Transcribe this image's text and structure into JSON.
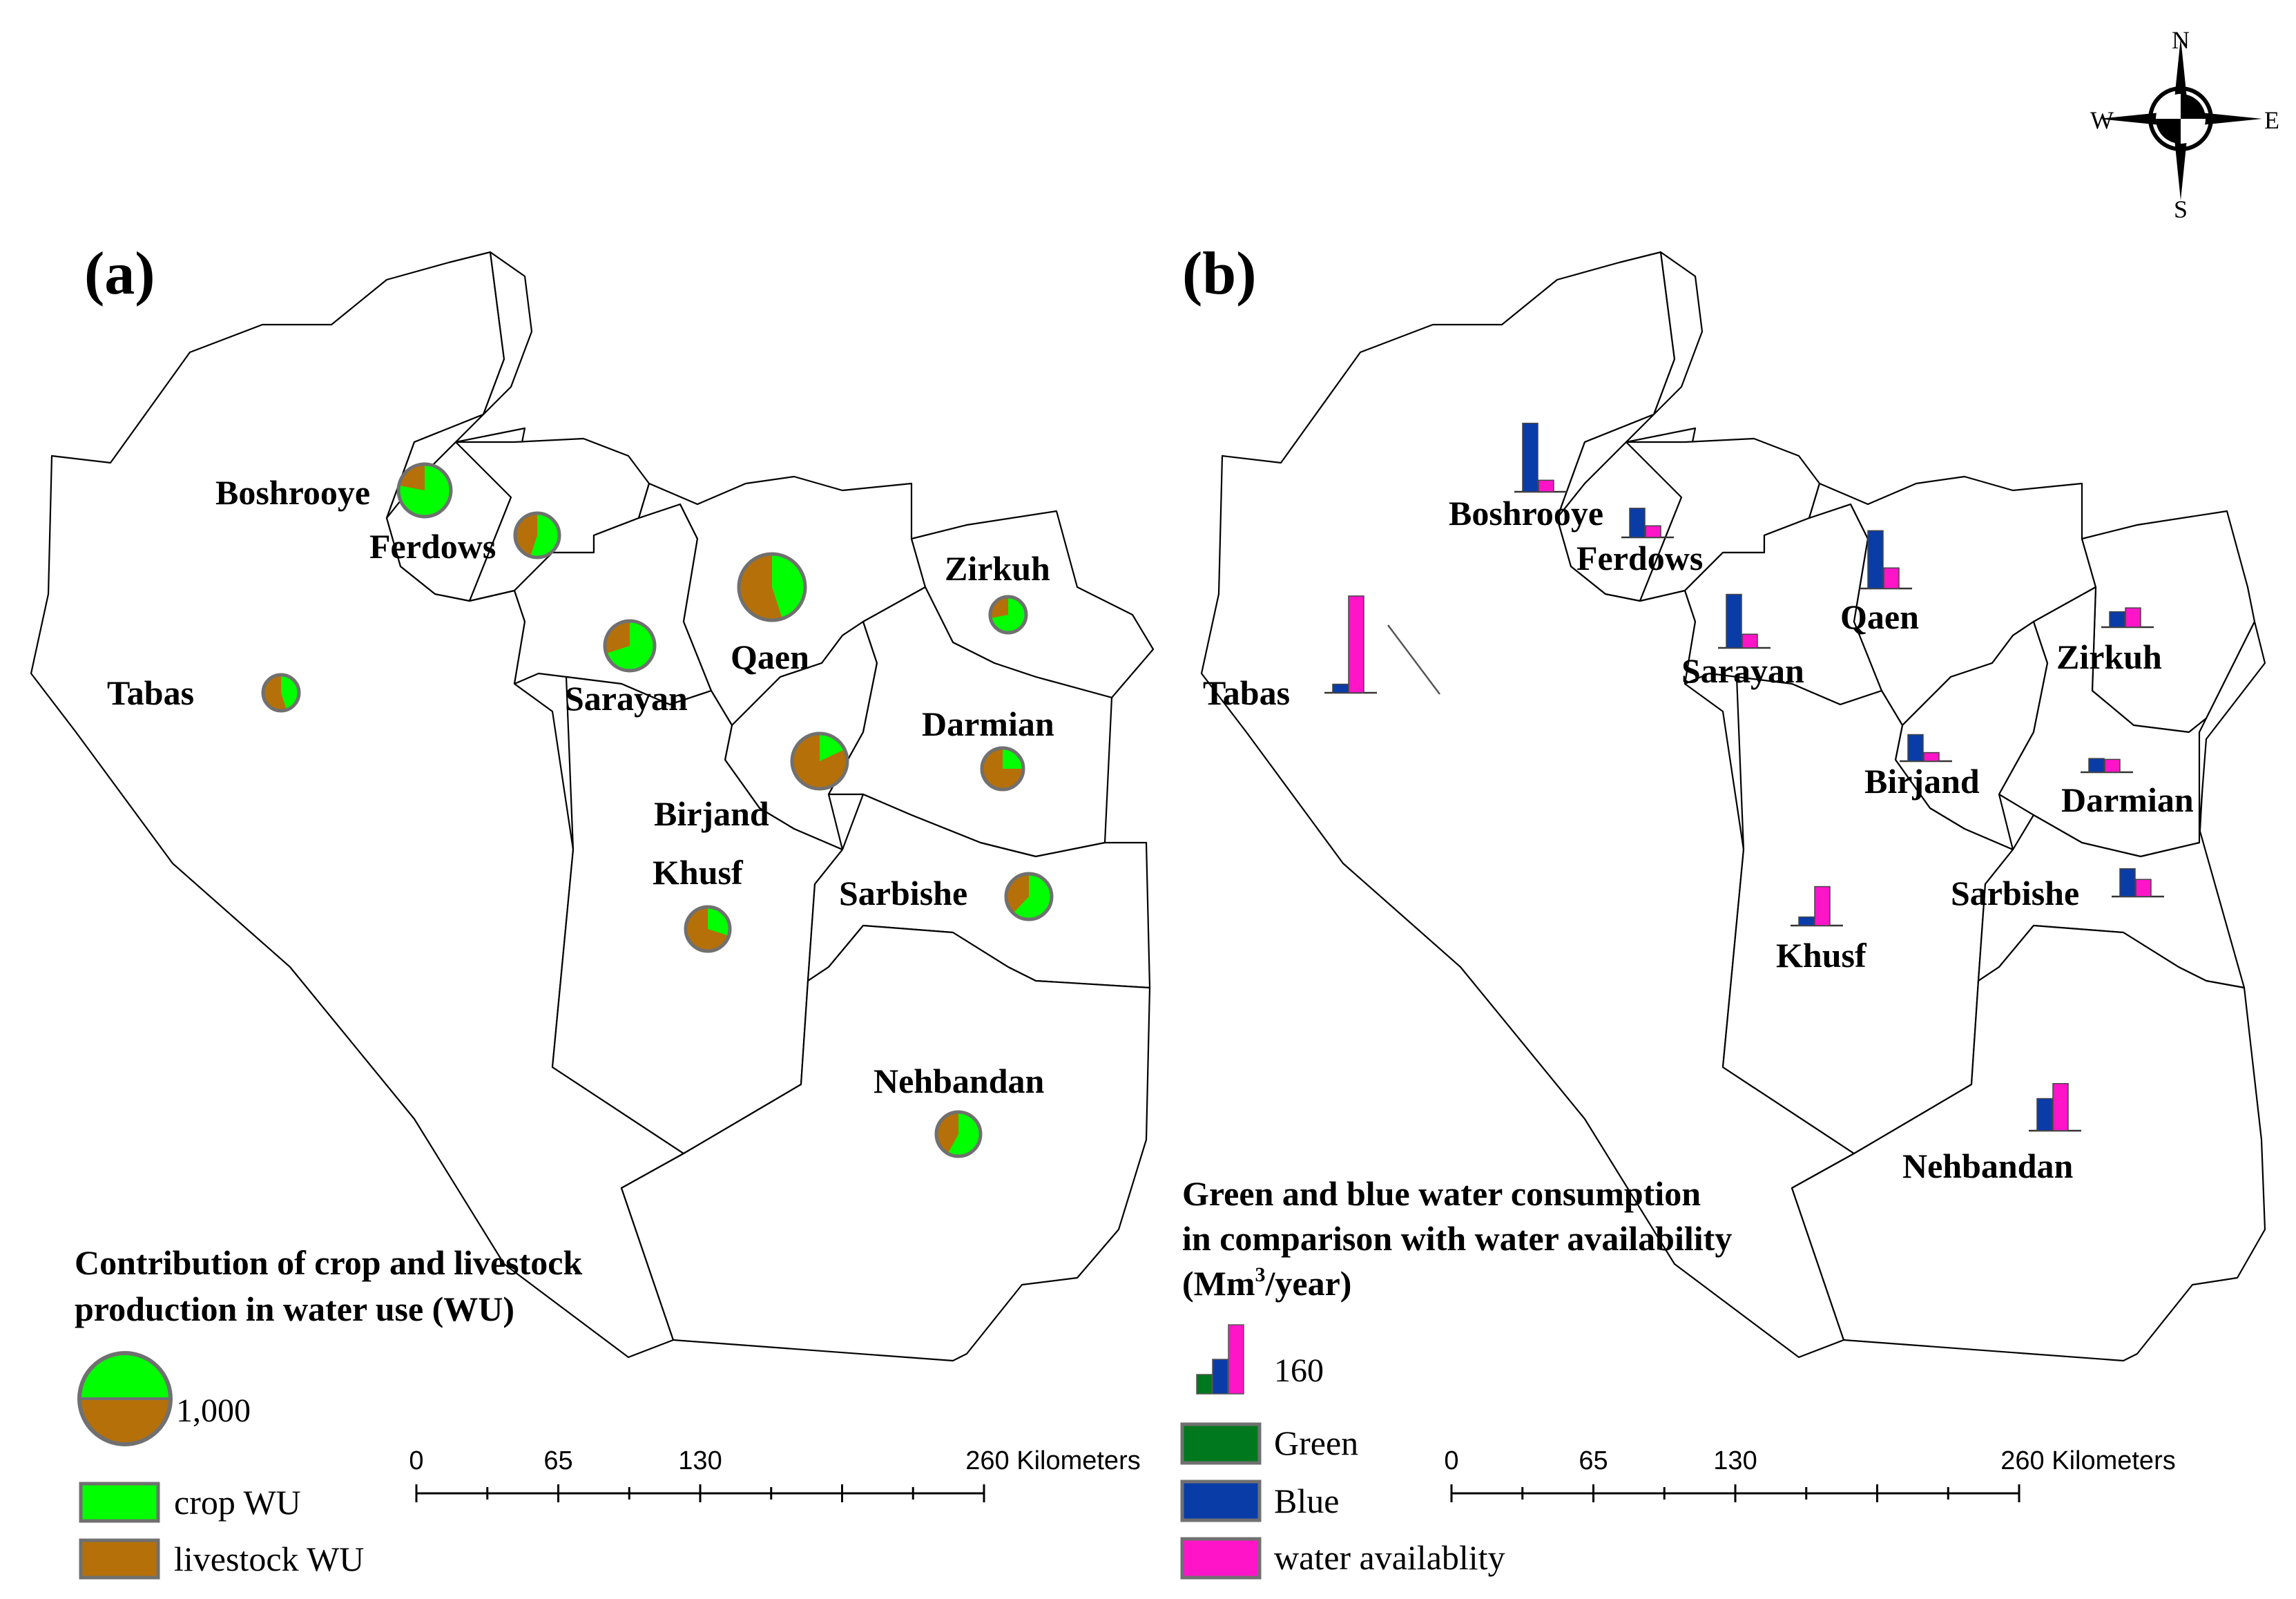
{
  "colors": {
    "crop": "#00ff00",
    "livestock": "#b5700a",
    "green": "#00781e",
    "blue": "#0a3ca8",
    "pink": "#ff14c8",
    "pie_outline": "#707070"
  },
  "compass": {
    "n": "N",
    "s": "S",
    "e": "E",
    "w": "W",
    "icon": "north-arrow-compass-icon"
  },
  "panel_a": {
    "tag": "(a)",
    "regions": [
      {
        "name": "Boshrooye",
        "crop_share": 0.78
      },
      {
        "name": "Ferdows",
        "crop_share": 0.55
      },
      {
        "name": "Tabas",
        "crop_share": 0.45
      },
      {
        "name": "Sarayan",
        "crop_share": 0.7
      },
      {
        "name": "Qaen",
        "crop_share": 0.45
      },
      {
        "name": "Zirkuh",
        "crop_share": 0.72
      },
      {
        "name": "Birjand",
        "crop_share": 0.18
      },
      {
        "name": "Darmian",
        "crop_share": 0.25
      },
      {
        "name": "Khusf",
        "crop_share": 0.3
      },
      {
        "name": "Sarbishe",
        "crop_share": 0.62
      },
      {
        "name": "Nehbandan",
        "crop_share": 0.58
      }
    ],
    "legend": {
      "title_line1": "Contribution of crop and livestock",
      "title_line2": "production in water use (WU)",
      "ref_value": "1,000",
      "crop_label": "crop WU",
      "livestock_label": "livestock WU"
    },
    "scale": {
      "ticks": [
        "0",
        "65",
        "130",
        "260 Kilometers"
      ]
    }
  },
  "panel_b": {
    "tag": "(b)",
    "regions": [
      {
        "name": "Boshrooye",
        "blue": 160,
        "availability": 27
      },
      {
        "name": "Ferdows",
        "blue": 68,
        "availability": 27
      },
      {
        "name": "Tabas",
        "blue": 20,
        "availability": 226
      },
      {
        "name": "Sarayan",
        "blue": 125,
        "availability": 32
      },
      {
        "name": "Qaen",
        "blue": 135,
        "availability": 48
      },
      {
        "name": "Zirkuh",
        "blue": 36,
        "availability": 45
      },
      {
        "name": "Birjand",
        "blue": 62,
        "availability": 20
      },
      {
        "name": "Darmian",
        "blue": 32,
        "availability": 30
      },
      {
        "name": "Khusf",
        "blue": 20,
        "availability": 91
      },
      {
        "name": "Sarbishe",
        "blue": 65,
        "availability": 40
      },
      {
        "name": "Nehbandan",
        "blue": 75,
        "availability": 110
      }
    ],
    "legend": {
      "title_line1": "Green and blue water consumption",
      "title_line2": "in comparison with water availability",
      "title_line3_prefix": "(Mm",
      "title_line3_sup": "3",
      "title_line3_suffix": "/year)",
      "ref_value": "160",
      "green_label": "Green",
      "blue_label": "Blue",
      "availability_label": "water availablity"
    },
    "scale": {
      "ticks": [
        "0",
        "65",
        "130",
        "260 Kilometers"
      ]
    }
  }
}
